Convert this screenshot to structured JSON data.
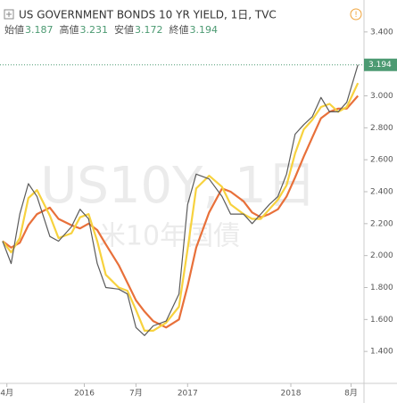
{
  "chart_data": {
    "type": "line",
    "title": "US GOVERNMENT BONDS 10 YR YIELD, 1日, TVC",
    "ohlc": [
      {
        "label": "始値",
        "value": 3.187
      },
      {
        "label": "高値",
        "value": 3.231
      },
      {
        "label": "安値",
        "value": 3.172
      },
      {
        "label": "終値",
        "value": 3.194
      }
    ],
    "watermark": "US10Y, 1日",
    "watermark_sub": "米10年国債",
    "x": [
      -0.5,
      0.5,
      1.5,
      2.5,
      3.5,
      5,
      6,
      7.5,
      8.5,
      9.5,
      10.5,
      11.5,
      13,
      14,
      15,
      16,
      17,
      18.5,
      20,
      21,
      22,
      23.5,
      25,
      26,
      27.5,
      28.5,
      29.5,
      30.5,
      31.5,
      32.5,
      33.5,
      34.5,
      35.5,
      36.5,
      37.5,
      38.5,
      39.5,
      40.8
    ],
    "series": [
      {
        "color": "#5b5b5b",
        "values": [
          2.09,
          1.95,
          2.26,
          2.45,
          2.37,
          2.12,
          2.09,
          2.18,
          2.29,
          2.23,
          1.95,
          1.8,
          1.79,
          1.76,
          1.55,
          1.5,
          1.56,
          1.59,
          1.76,
          2.32,
          2.51,
          2.48,
          2.37,
          2.26,
          2.26,
          2.2,
          2.26,
          2.32,
          2.37,
          2.51,
          2.76,
          2.82,
          2.87,
          2.99,
          2.9,
          2.9,
          2.96,
          3.194
        ]
      },
      {
        "color": "#f7d23e",
        "values": [
          2.09,
          2.02,
          2.11,
          2.36,
          2.41,
          2.25,
          2.11,
          2.14,
          2.24,
          2.26,
          2.09,
          1.88,
          1.8,
          1.78,
          1.66,
          1.53,
          1.53,
          1.58,
          1.68,
          2.04,
          2.42,
          2.5,
          2.43,
          2.32,
          2.26,
          2.23,
          2.23,
          2.29,
          2.35,
          2.44,
          2.64,
          2.79,
          2.85,
          2.93,
          2.95,
          2.9,
          2.93,
          3.08
        ]
      },
      {
        "color": "#e8703a",
        "values": [
          2.09,
          2.05,
          2.08,
          2.19,
          2.26,
          2.3,
          2.23,
          2.19,
          2.17,
          2.2,
          2.16,
          2.07,
          1.94,
          1.83,
          1.72,
          1.65,
          1.59,
          1.55,
          1.6,
          1.81,
          2.05,
          2.27,
          2.42,
          2.4,
          2.34,
          2.27,
          2.24,
          2.26,
          2.29,
          2.37,
          2.49,
          2.62,
          2.74,
          2.86,
          2.9,
          2.92,
          2.92,
          3.0
        ]
      }
    ],
    "xlim": [
      -0.8,
      41.5
    ],
    "xticks": [
      {
        "value": 0,
        "label": "4月"
      },
      {
        "value": 9,
        "label": "2016"
      },
      {
        "value": 15,
        "label": "7月"
      },
      {
        "value": 21,
        "label": "2017"
      },
      {
        "value": 33,
        "label": "2018"
      },
      {
        "value": 40,
        "label": "8月"
      }
    ],
    "ylim": [
      1.2,
      3.6
    ],
    "yticks": [
      {
        "value": 1.4,
        "label": "1.400"
      },
      {
        "value": 1.6,
        "label": "1.600"
      },
      {
        "value": 1.8,
        "label": "1.800"
      },
      {
        "value": 2.0,
        "label": "2.000"
      },
      {
        "value": 2.2,
        "label": "2.200"
      },
      {
        "value": 2.4,
        "label": "2.400"
      },
      {
        "value": 2.6,
        "label": "2.600"
      },
      {
        "value": 2.8,
        "label": "2.800"
      },
      {
        "value": 3.0,
        "label": "3.000"
      },
      {
        "value": 3.2,
        "label": "3.200"
      },
      {
        "value": 3.4,
        "label": "3.400"
      }
    ],
    "up_color": "#4c9a72"
  }
}
